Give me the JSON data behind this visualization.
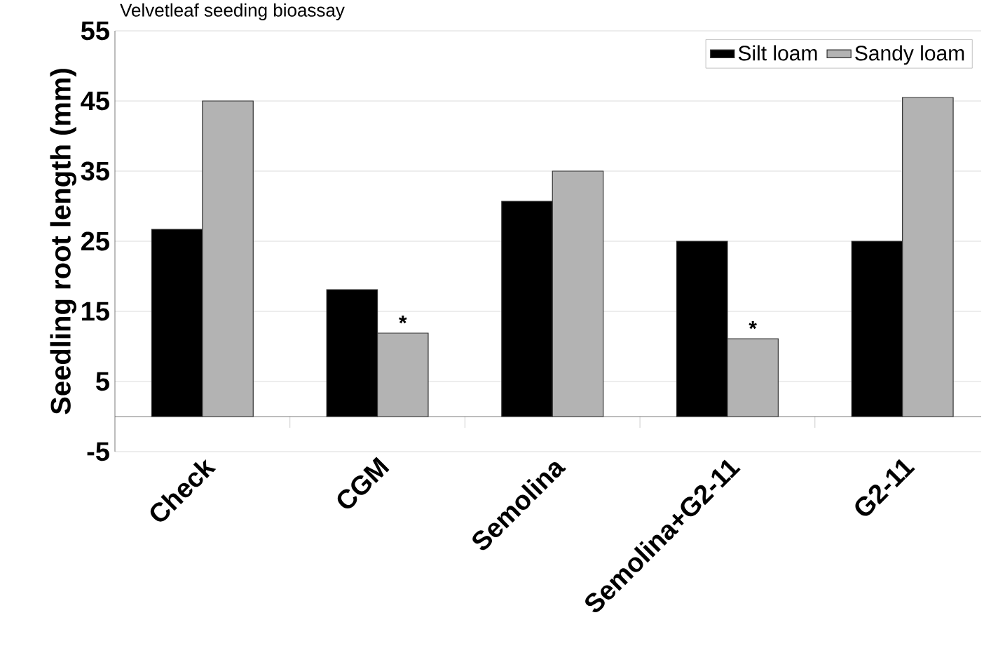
{
  "chart_data": {
    "type": "bar",
    "title": "Velvetleaf seeding bioassay",
    "ylabel": "Seedling root length (mm)",
    "categories": [
      "Check",
      "CGM",
      "Semolina",
      "Semolina+G2-11",
      "G2-11"
    ],
    "series": [
      {
        "name": "Silt loam",
        "color": "#000000",
        "values": [
          26.7,
          18.1,
          30.7,
          25,
          25
        ]
      },
      {
        "name": "Sandy loam",
        "color": "#b3b3b3",
        "values": [
          45,
          11.9,
          35,
          11.1,
          45.5
        ]
      }
    ],
    "ylim": [
      -5,
      55
    ],
    "yticks": [
      -5,
      5,
      15,
      25,
      35,
      45,
      55
    ],
    "grid": "y",
    "legend": "top right",
    "annotations": [
      {
        "text": "*",
        "x": "CGM",
        "y": 11.9
      },
      {
        "text": "*",
        "x": "Semolina+G2-11",
        "y": 11.1
      }
    ]
  }
}
